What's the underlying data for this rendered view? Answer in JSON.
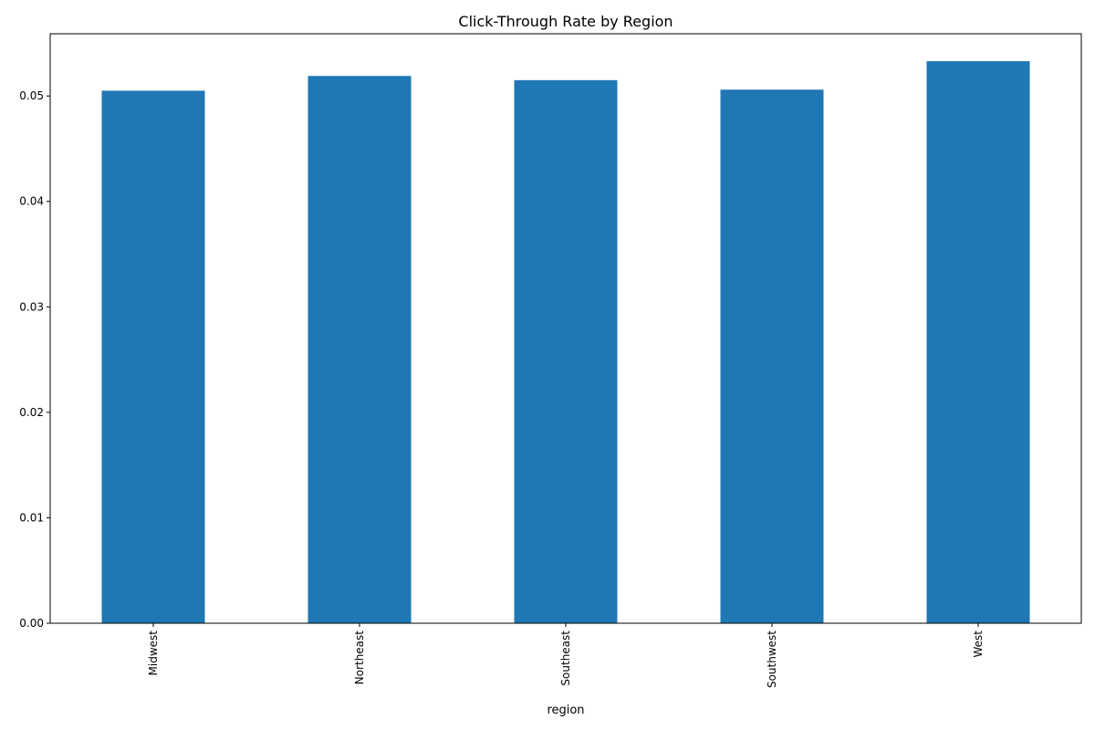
{
  "chart_data": {
    "type": "bar",
    "title": "Click-Through Rate by Region",
    "xlabel": "region",
    "ylabel": "",
    "categories": [
      "Midwest",
      "Northeast",
      "Southeast",
      "Southwest",
      "West"
    ],
    "values": [
      0.0505,
      0.0519,
      0.0515,
      0.0506,
      0.0533
    ],
    "ylim": [
      0,
      0.0559
    ],
    "yticks": [
      0.0,
      0.01,
      0.02,
      0.03,
      0.04,
      0.05
    ],
    "ytick_labels": [
      "0.00",
      "0.01",
      "0.02",
      "0.03",
      "0.04",
      "0.05"
    ],
    "x_tick_rotation": "vertical",
    "grid": false,
    "legend": "none",
    "bar_color": "#1f77b4"
  }
}
